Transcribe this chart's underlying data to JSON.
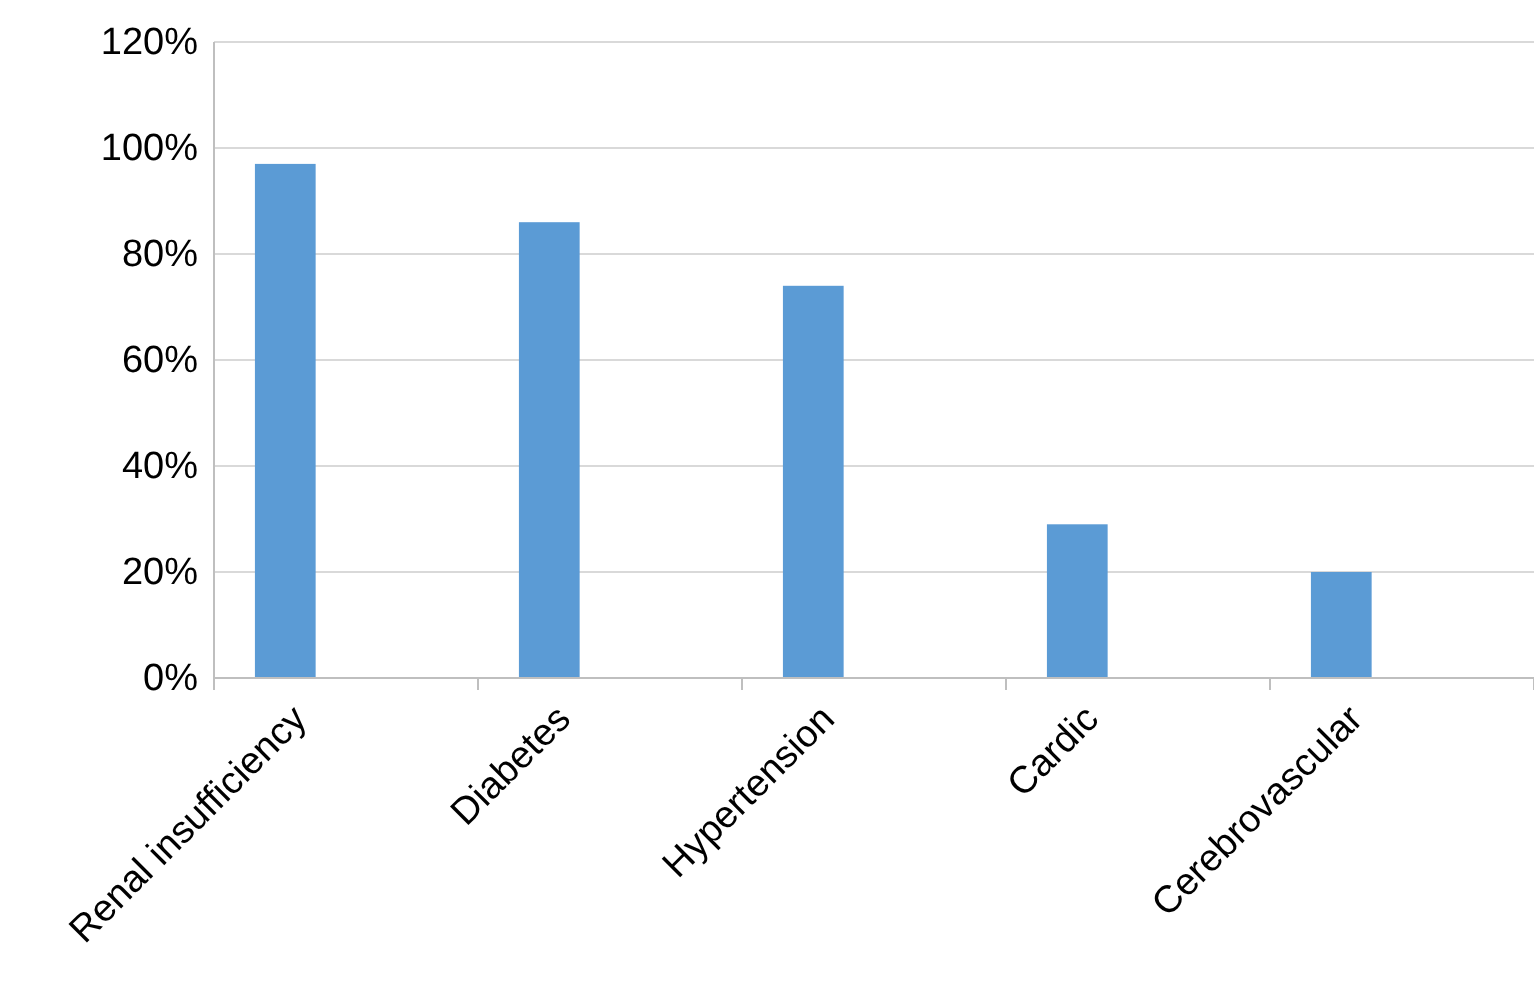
{
  "chart_data": {
    "type": "bar",
    "categories": [
      "Renal insufficiency",
      "Diabetes",
      "Hypertension",
      "Cardic",
      "Cerebrovascular"
    ],
    "values": [
      97,
      86,
      74,
      29,
      20
    ],
    "color": "#5b9bd5",
    "ylim": [
      0,
      120
    ],
    "yticks": [
      {
        "value": 0,
        "label": "0%"
      },
      {
        "value": 20,
        "label": "20%"
      },
      {
        "value": 40,
        "label": "40%"
      },
      {
        "value": 60,
        "label": "60%"
      },
      {
        "value": 80,
        "label": "80%"
      },
      {
        "value": 100,
        "label": "100%"
      },
      {
        "value": 120,
        "label": "120%"
      }
    ],
    "grid": "y"
  }
}
